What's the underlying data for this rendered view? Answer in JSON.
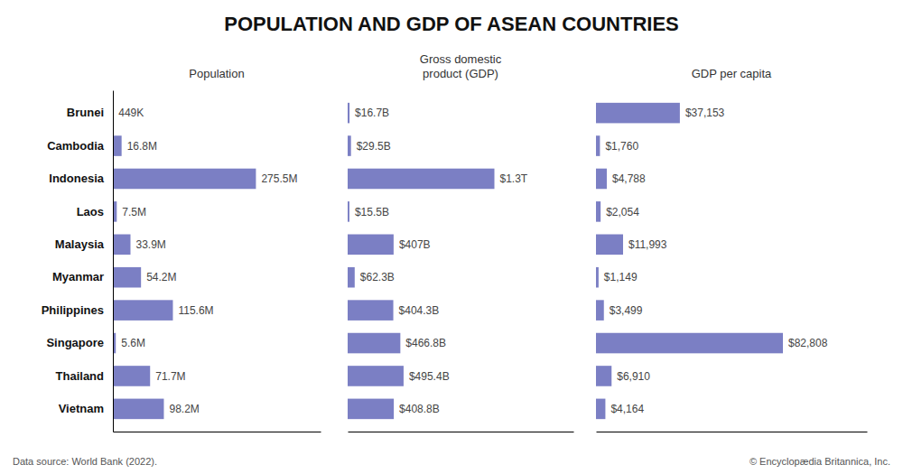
{
  "chart_data": [
    {
      "type": "bar",
      "orientation": "horizontal",
      "title": "POPULATION AND GDP OF ASEAN COUNTRIES",
      "xlabel": "Population",
      "categories": [
        "Brunei",
        "Cambodia",
        "Indonesia",
        "Laos",
        "Malaysia",
        "Myanmar",
        "Philippines",
        "Singapore",
        "Thailand",
        "Vietnam"
      ],
      "values": [
        0.449,
        16.8,
        275.5,
        7.5,
        33.9,
        54.2,
        115.6,
        5.6,
        71.7,
        98.2
      ],
      "value_labels": [
        "449K",
        "16.8M",
        "275.5M",
        "7.5M",
        "33.9M",
        "54.2M",
        "115.6M",
        "5.6M",
        "71.7M",
        "98.2M"
      ],
      "data_labels": true,
      "color": "#7B7FC4",
      "xlim": [
        0,
        400
      ],
      "tick_labels": "y",
      "grid": false,
      "annotations": [
        "Data source: World Bank (2022).",
        "© Encyclopædia Britannica, Inc."
      ]
    },
    {
      "type": "bar",
      "orientation": "horizontal",
      "xlabel": "Gross domestic\nproduct (GDP)",
      "categories": [
        "Brunei",
        "Cambodia",
        "Indonesia",
        "Laos",
        "Malaysia",
        "Myanmar",
        "Philippines",
        "Singapore",
        "Thailand",
        "Vietnam"
      ],
      "values": [
        16.7,
        29.5,
        1300,
        15.5,
        407,
        62.3,
        404.3,
        466.8,
        495.4,
        408.8
      ],
      "value_labels": [
        "$16.7B",
        "$29.5B",
        "$1.3T",
        "$15.5B",
        "$407B",
        "$62.3B",
        "$404.3B",
        "$466.8B",
        "$495.4B",
        "$408.8B"
      ],
      "data_labels": true,
      "color": "#7B7FC4",
      "xlim": [
        0,
        2000
      ],
      "tick_labels": false,
      "grid": false
    },
    {
      "type": "bar",
      "orientation": "horizontal",
      "xlabel": "GDP per capita",
      "categories": [
        "Brunei",
        "Cambodia",
        "Indonesia",
        "Laos",
        "Malaysia",
        "Myanmar",
        "Philippines",
        "Singapore",
        "Thailand",
        "Vietnam"
      ],
      "values": [
        37153,
        1760,
        4788,
        2054,
        11993,
        1149,
        3499,
        82808,
        6910,
        4164
      ],
      "value_labels": [
        "$37,153",
        "$1,760",
        "$4,788",
        "$2,054",
        "$11,993",
        "$1,149",
        "$3,499",
        "$82,808",
        "$6,910",
        "$4,164"
      ],
      "data_labels": true,
      "color": "#7B7FC4",
      "xlim": [
        0,
        120000
      ],
      "tick_labels": false,
      "grid": false
    }
  ]
}
